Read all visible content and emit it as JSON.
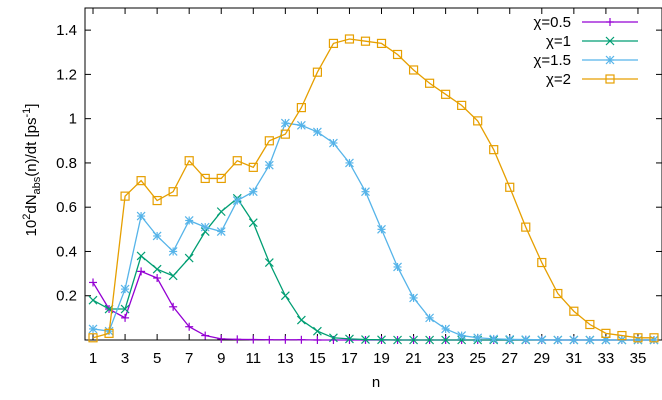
{
  "chart_data": {
    "type": "line",
    "xlabel": "n",
    "ylabel": {
      "base": "10",
      "exp": "2",
      "mid": "dN",
      "sub": "abs",
      "rest": "(n)/dt  [ps",
      "unit_exp": "-1",
      "close": "]"
    },
    "xlim": [
      0.5,
      36.5
    ],
    "ylim": [
      0,
      1.5
    ],
    "xticks": [
      1,
      3,
      5,
      7,
      9,
      11,
      13,
      15,
      17,
      19,
      21,
      23,
      25,
      27,
      29,
      31,
      33,
      35
    ],
    "yticks": [
      0.2,
      0.4,
      0.6,
      0.8,
      1,
      1.2,
      1.4
    ],
    "ytick_labels": [
      "0.2",
      "0.4",
      "0.6",
      "0.8",
      "1",
      "1.2",
      "1.4"
    ],
    "legend_position": "top-right",
    "x": [
      1,
      2,
      3,
      4,
      5,
      6,
      7,
      8,
      9,
      10,
      11,
      12,
      13,
      14,
      15,
      16,
      17,
      18,
      19,
      20,
      21,
      22,
      23,
      24,
      25,
      26,
      27,
      28,
      29,
      30,
      31,
      32,
      33,
      34,
      35,
      36
    ],
    "series": [
      {
        "name": "χ=0.5",
        "color": "#9400d3",
        "marker": "plus",
        "values": [
          0.26,
          0.14,
          0.1,
          0.31,
          0.28,
          0.15,
          0.06,
          0.02,
          0.005,
          0.003,
          0.002,
          0.001,
          0.001,
          0.001,
          0,
          0,
          0,
          0,
          0,
          0,
          0,
          0,
          0,
          0,
          0,
          0,
          0,
          0,
          0,
          0,
          0,
          0,
          0,
          0,
          0,
          0
        ]
      },
      {
        "name": "χ=1",
        "color": "#009e73",
        "marker": "x",
        "values": [
          0.18,
          0.14,
          0.14,
          0.38,
          0.32,
          0.29,
          0.37,
          0.49,
          0.58,
          0.64,
          0.53,
          0.35,
          0.2,
          0.09,
          0.04,
          0.01,
          0.005,
          0.002,
          0.001,
          0,
          0,
          0,
          0,
          0,
          0,
          0,
          0,
          0,
          0,
          0,
          0,
          0,
          0,
          0,
          0,
          0
        ]
      },
      {
        "name": "χ=1.5",
        "color": "#56b4e9",
        "marker": "star",
        "values": [
          0.05,
          0.04,
          0.23,
          0.56,
          0.47,
          0.4,
          0.54,
          0.51,
          0.49,
          0.63,
          0.67,
          0.79,
          0.98,
          0.97,
          0.94,
          0.89,
          0.8,
          0.67,
          0.5,
          0.33,
          0.19,
          0.1,
          0.05,
          0.02,
          0.01,
          0.005,
          0.003,
          0.002,
          0.001,
          0,
          0,
          0,
          0,
          0,
          0,
          0
        ]
      },
      {
        "name": "χ=2",
        "color": "#e69f00",
        "marker": "square",
        "values": [
          0.01,
          0.03,
          0.65,
          0.72,
          0.63,
          0.67,
          0.81,
          0.73,
          0.73,
          0.81,
          0.78,
          0.9,
          0.93,
          1.05,
          1.21,
          1.34,
          1.36,
          1.35,
          1.34,
          1.29,
          1.22,
          1.16,
          1.11,
          1.06,
          0.99,
          0.86,
          0.69,
          0.51,
          0.35,
          0.21,
          0.13,
          0.07,
          0.03,
          0.02,
          0.01,
          0.01
        ]
      }
    ]
  }
}
